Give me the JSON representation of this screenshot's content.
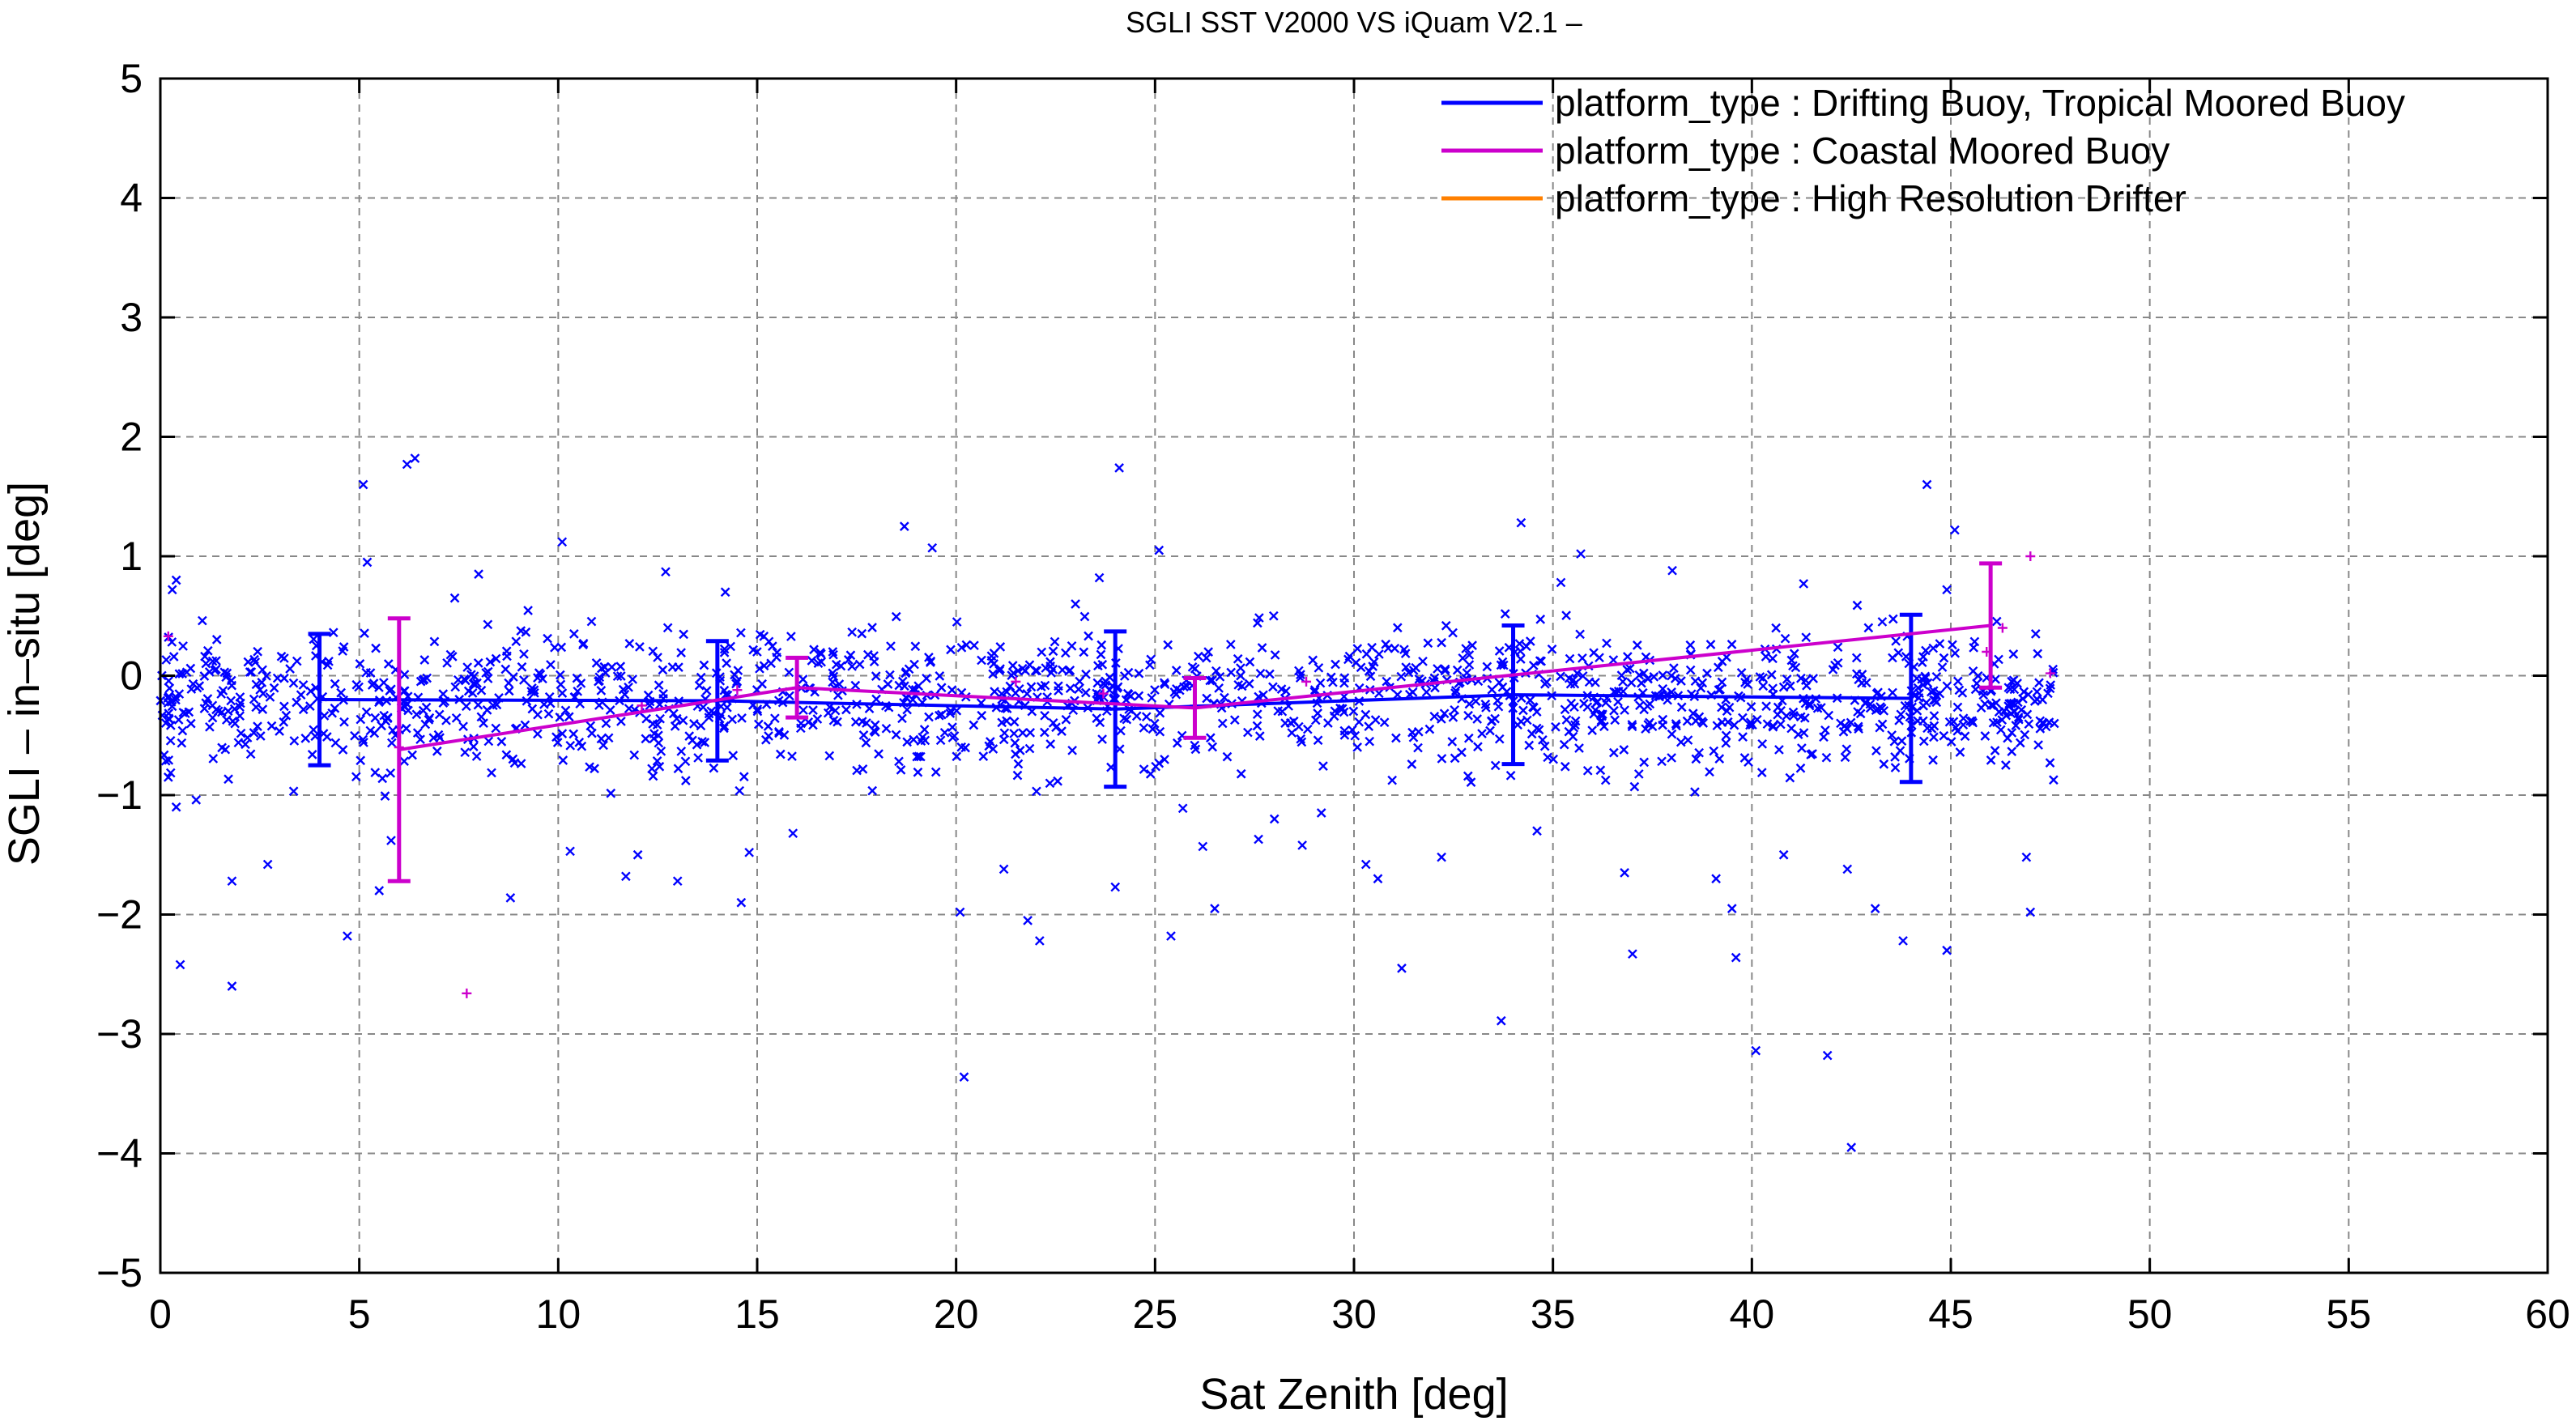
{
  "chart_data": {
    "type": "scatter",
    "title": "SGLI SST V2000 VS iQuam V2.1  –",
    "xlabel": "Sat Zenith [deg]",
    "ylabel": "SGLI – in–situ [deg]",
    "xlim": [
      0,
      60
    ],
    "ylim": [
      -5,
      5
    ],
    "xticks": [
      0,
      5,
      10,
      15,
      20,
      25,
      30,
      35,
      40,
      45,
      50,
      55,
      60
    ],
    "yticks": [
      -5,
      -4,
      -3,
      -2,
      -1,
      0,
      1,
      2,
      3,
      4,
      5
    ],
    "xtick_labels": [
      "0",
      "5",
      "10",
      "15",
      "20",
      "25",
      "30",
      "35",
      "40",
      "45",
      "50",
      "55",
      "60"
    ],
    "ytick_labels": [
      "−5",
      "−4",
      "−3",
      "−2",
      "−1",
      "0",
      "1",
      "2",
      "3",
      "4",
      "5"
    ],
    "grid": true,
    "legend_position": "top-right",
    "series": [
      {
        "name": "platform_type : Drifting Buoy, Tropical Moored Buoy",
        "color": "#0000ff",
        "marker": "x",
        "mean_line": {
          "x": [
            4,
            14,
            24,
            34,
            44
          ],
          "y": [
            -0.2,
            -0.21,
            -0.28,
            -0.16,
            -0.19
          ],
          "std": [
            0.55,
            0.5,
            0.65,
            0.58,
            0.7
          ]
        },
        "points": [
          [
            0.2,
            -0.85
          ],
          [
            0.3,
            0.72
          ],
          [
            0.4,
            0.8
          ],
          [
            0.4,
            -1.1
          ],
          [
            0.5,
            -2.42
          ],
          [
            0.9,
            -1.04
          ],
          [
            1.8,
            -2.6
          ],
          [
            1.8,
            -1.72
          ],
          [
            2.7,
            -1.58
          ],
          [
            4.7,
            -2.18
          ],
          [
            5.1,
            1.6
          ],
          [
            5.2,
            0.95
          ],
          [
            6.2,
            1.77
          ],
          [
            6.4,
            1.82
          ],
          [
            5.5,
            -1.8
          ],
          [
            5.8,
            -1.38
          ],
          [
            7.4,
            0.65
          ],
          [
            8.0,
            0.85
          ],
          [
            8.8,
            -1.86
          ],
          [
            10.1,
            1.12
          ],
          [
            10.3,
            -1.47
          ],
          [
            11.7,
            -1.68
          ],
          [
            12.0,
            -1.5
          ],
          [
            13.0,
            -1.72
          ],
          [
            12.7,
            0.87
          ],
          [
            14.2,
            0.7
          ],
          [
            14.6,
            -1.9
          ],
          [
            14.8,
            -1.48
          ],
          [
            15.9,
            -1.32
          ],
          [
            16.9,
            0.2
          ],
          [
            18.7,
            1.25
          ],
          [
            19.4,
            1.07
          ],
          [
            20.1,
            -1.98
          ],
          [
            20.2,
            -3.36
          ],
          [
            21.2,
            -1.62
          ],
          [
            22.1,
            -2.22
          ],
          [
            21.8,
            -2.05
          ],
          [
            23.0,
            0.6
          ],
          [
            23.6,
            0.82
          ],
          [
            24.0,
            -1.77
          ],
          [
            24.1,
            1.74
          ],
          [
            25.1,
            1.05
          ],
          [
            25.4,
            -2.18
          ],
          [
            26.2,
            -1.43
          ],
          [
            26.5,
            -1.95
          ],
          [
            27.6,
            -1.37
          ],
          [
            28.0,
            -1.2
          ],
          [
            28.7,
            -1.42
          ],
          [
            30.3,
            -1.58
          ],
          [
            30.6,
            -1.7
          ],
          [
            31.2,
            -2.45
          ],
          [
            32.2,
            -1.52
          ],
          [
            33.7,
            -2.89
          ],
          [
            34.2,
            1.28
          ],
          [
            34.6,
            -1.3
          ],
          [
            35.7,
            1.02
          ],
          [
            35.2,
            0.78
          ],
          [
            36.8,
            -1.65
          ],
          [
            37.0,
            -2.33
          ],
          [
            38.0,
            0.88
          ],
          [
            39.1,
            -1.7
          ],
          [
            39.5,
            -1.95
          ],
          [
            39.6,
            -2.36
          ],
          [
            40.1,
            -3.14
          ],
          [
            40.8,
            -1.5
          ],
          [
            41.3,
            0.77
          ],
          [
            41.9,
            -3.18
          ],
          [
            42.4,
            -1.62
          ],
          [
            42.5,
            -3.95
          ],
          [
            43.1,
            -1.95
          ],
          [
            43.8,
            -2.22
          ],
          [
            44.4,
            1.6
          ],
          [
            44.9,
            -2.3
          ],
          [
            44.9,
            0.72
          ],
          [
            45.1,
            1.22
          ],
          [
            46.9,
            -1.52
          ],
          [
            47.0,
            -1.98
          ],
          [
            47.2,
            -0.58
          ],
          [
            47.6,
            -0.4
          ],
          [
            46.6,
            -0.3
          ]
        ]
      },
      {
        "name": "platform_type : Coastal Moored Buoy",
        "color": "#cc00cc",
        "marker": "+",
        "mean_line": {
          "x": [
            6,
            16,
            26,
            46
          ],
          "y": [
            -0.62,
            -0.1,
            -0.27,
            0.42
          ],
          "std": [
            1.1,
            0.25,
            0.25,
            0.52
          ]
        },
        "points": [
          [
            0.2,
            0.33
          ],
          [
            6.0,
            -0.6
          ],
          [
            7.7,
            -2.66
          ],
          [
            14.5,
            -0.12
          ],
          [
            16.0,
            -0.1
          ],
          [
            21.5,
            -0.05
          ],
          [
            23.7,
            -0.15
          ],
          [
            26.0,
            -0.25
          ],
          [
            45.9,
            0.2
          ],
          [
            47.0,
            1.0
          ],
          [
            47.5,
            0.02
          ],
          [
            28.8,
            -0.05
          ],
          [
            46.3,
            0.4
          ],
          [
            12.1,
            -0.25
          ]
        ]
      },
      {
        "name": "platform_type : High Resolution Drifter",
        "color": "#ff8000",
        "marker": "x",
        "points": []
      }
    ]
  }
}
